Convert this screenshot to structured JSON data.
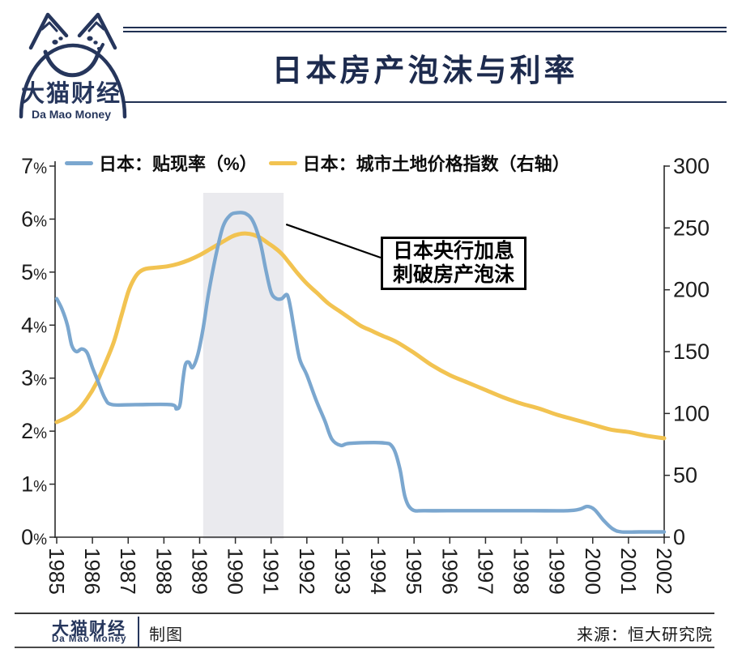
{
  "brand": {
    "cn": "大猫财经",
    "en": "Da Mao Money"
  },
  "header": {
    "title": "日本房产泡沫与利率"
  },
  "footer": {
    "brand_cn": "大猫财经",
    "brand_en": "Da Mao Money",
    "credit": "制图",
    "source": "来源：恒大研究院"
  },
  "colors": {
    "navy": "#26365c",
    "discount_rate_blue": "#7BA7CF",
    "land_price_yellow": "#F2C351",
    "highlight_band": "#EAEAEE",
    "axis": "#2b2b2b"
  },
  "chart_data": {
    "type": "line",
    "title": "日本房产泡沫与利率",
    "x_axis": {
      "ticks": [
        1985,
        1986,
        1987,
        1988,
        1989,
        1990,
        1991,
        1992,
        1993,
        1994,
        1995,
        1996,
        1997,
        1998,
        1999,
        2000,
        2001,
        2002
      ],
      "labels_rotated_90deg": true,
      "range": [
        1985,
        2002
      ]
    },
    "left_axis": {
      "unit": "%",
      "ticks": [
        0,
        1,
        2,
        3,
        4,
        5,
        6,
        7
      ],
      "range": [
        0,
        7
      ]
    },
    "right_axis": {
      "ticks": [
        0,
        50,
        100,
        150,
        200,
        250,
        300
      ],
      "range": [
        0,
        300
      ]
    },
    "highlight_band": {
      "from_year": 1989.1,
      "to_year": 1991.35
    },
    "annotation": {
      "lines": [
        "日本央行加息",
        "刺破房产泡沫"
      ],
      "pointer_from": {
        "year": 1991.42,
        "pct": 5.9
      }
    },
    "legend_position": "top",
    "grid": false,
    "series": [
      {
        "name": "日本：贴现率（%）",
        "axis": "left",
        "color": "#7BA7CF",
        "points": [
          [
            1985.0,
            4.5
          ],
          [
            1985.15,
            4.3
          ],
          [
            1985.3,
            4.0
          ],
          [
            1985.42,
            3.62
          ],
          [
            1985.55,
            3.5
          ],
          [
            1985.7,
            3.55
          ],
          [
            1985.85,
            3.48
          ],
          [
            1986.0,
            3.2
          ],
          [
            1986.15,
            2.95
          ],
          [
            1986.35,
            2.62
          ],
          [
            1986.55,
            2.5
          ],
          [
            1987.2,
            2.5
          ],
          [
            1988.2,
            2.5
          ],
          [
            1988.35,
            2.42
          ],
          [
            1988.45,
            2.5
          ],
          [
            1988.52,
            2.9
          ],
          [
            1988.6,
            3.25
          ],
          [
            1988.7,
            3.3
          ],
          [
            1988.8,
            3.2
          ],
          [
            1988.95,
            3.45
          ],
          [
            1989.1,
            3.95
          ],
          [
            1989.25,
            4.6
          ],
          [
            1989.45,
            5.3
          ],
          [
            1989.65,
            5.85
          ],
          [
            1989.85,
            6.07
          ],
          [
            1990.05,
            6.12
          ],
          [
            1990.3,
            6.1
          ],
          [
            1990.5,
            5.95
          ],
          [
            1990.7,
            5.55
          ],
          [
            1990.85,
            5.05
          ],
          [
            1991.0,
            4.62
          ],
          [
            1991.15,
            4.5
          ],
          [
            1991.3,
            4.5
          ],
          [
            1991.45,
            4.57
          ],
          [
            1991.55,
            4.3
          ],
          [
            1991.65,
            3.9
          ],
          [
            1991.8,
            3.36
          ],
          [
            1992.0,
            3.06
          ],
          [
            1992.25,
            2.6
          ],
          [
            1992.5,
            2.2
          ],
          [
            1992.7,
            1.85
          ],
          [
            1992.95,
            1.73
          ],
          [
            1993.2,
            1.77
          ],
          [
            1994.1,
            1.78
          ],
          [
            1994.4,
            1.7
          ],
          [
            1994.6,
            1.3
          ],
          [
            1994.75,
            0.75
          ],
          [
            1994.95,
            0.52
          ],
          [
            1995.3,
            0.5
          ],
          [
            1996.3,
            0.5
          ],
          [
            1997.3,
            0.5
          ],
          [
            1998.3,
            0.5
          ],
          [
            1999.3,
            0.5
          ],
          [
            1999.65,
            0.53
          ],
          [
            1999.85,
            0.58
          ],
          [
            2000.05,
            0.52
          ],
          [
            2000.3,
            0.32
          ],
          [
            2000.55,
            0.16
          ],
          [
            2000.8,
            0.1
          ],
          [
            2001.3,
            0.1
          ],
          [
            2002.0,
            0.1
          ]
        ]
      },
      {
        "name": "日本：城市土地价格指数（右轴）",
        "axis": "right",
        "color": "#F2C351",
        "points": [
          [
            1985.0,
            93
          ],
          [
            1985.3,
            97
          ],
          [
            1985.6,
            103
          ],
          [
            1985.85,
            112
          ],
          [
            1986.1,
            124
          ],
          [
            1986.35,
            140
          ],
          [
            1986.6,
            158
          ],
          [
            1986.8,
            178
          ],
          [
            1987.0,
            198
          ],
          [
            1987.15,
            208
          ],
          [
            1987.3,
            214
          ],
          [
            1987.5,
            217
          ],
          [
            1987.8,
            218
          ],
          [
            1988.1,
            219
          ],
          [
            1988.4,
            221
          ],
          [
            1988.7,
            224
          ],
          [
            1989.0,
            228
          ],
          [
            1989.3,
            233
          ],
          [
            1989.6,
            238
          ],
          [
            1989.9,
            243
          ],
          [
            1990.1,
            245
          ],
          [
            1990.3,
            245.5
          ],
          [
            1990.5,
            244.5
          ],
          [
            1990.7,
            242
          ],
          [
            1990.9,
            238
          ],
          [
            1991.1,
            234
          ],
          [
            1991.3,
            229
          ],
          [
            1991.5,
            222
          ],
          [
            1991.75,
            213
          ],
          [
            1992.0,
            205
          ],
          [
            1992.3,
            197
          ],
          [
            1992.6,
            189
          ],
          [
            1992.9,
            183
          ],
          [
            1993.2,
            177
          ],
          [
            1993.5,
            171
          ],
          [
            1993.8,
            167
          ],
          [
            1994.1,
            163
          ],
          [
            1994.5,
            158
          ],
          [
            1995.0,
            149
          ],
          [
            1995.5,
            139
          ],
          [
            1996.0,
            131
          ],
          [
            1996.5,
            125
          ],
          [
            1997.0,
            119
          ],
          [
            1997.5,
            113
          ],
          [
            1998.0,
            108
          ],
          [
            1998.5,
            104
          ],
          [
            1999.0,
            99
          ],
          [
            1999.5,
            95
          ],
          [
            2000.0,
            91
          ],
          [
            2000.5,
            87
          ],
          [
            2001.0,
            85
          ],
          [
            2001.5,
            82
          ],
          [
            2002.0,
            80
          ]
        ]
      }
    ]
  }
}
